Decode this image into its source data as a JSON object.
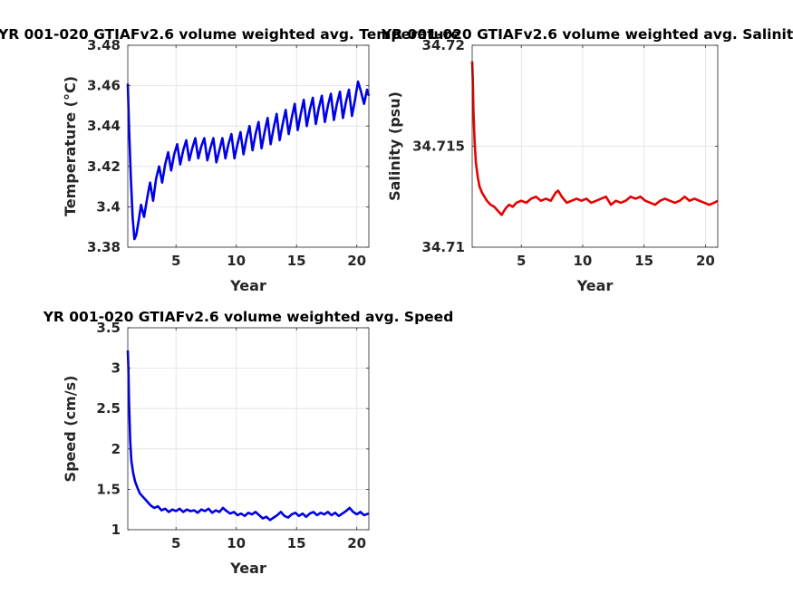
{
  "chart_data": [
    {
      "type": "line",
      "title": "YR 001-020 GTIAFv2.6 volume weighted avg. Temperature",
      "xlabel": "Year",
      "ylabel": "Temperature (°C)",
      "xlim": [
        1,
        21
      ],
      "ylim": [
        3.38,
        3.48
      ],
      "xticks": [
        5,
        10,
        15,
        20
      ],
      "yticks": [
        3.38,
        3.4,
        3.42,
        3.44,
        3.46,
        3.48
      ],
      "ytick_labels": [
        "3.38",
        "3.4",
        "3.42",
        "3.44",
        "3.46",
        "3.48"
      ],
      "grid": true,
      "color": "#0000e6",
      "x": [
        1.0,
        1.1,
        1.25,
        1.4,
        1.55,
        1.7,
        1.9,
        2.1,
        2.35,
        2.6,
        2.85,
        3.1,
        3.35,
        3.6,
        3.85,
        4.1,
        4.35,
        4.6,
        4.85,
        5.1,
        5.35,
        5.6,
        5.85,
        6.1,
        6.35,
        6.6,
        6.85,
        7.1,
        7.35,
        7.6,
        7.85,
        8.1,
        8.35,
        8.6,
        8.85,
        9.1,
        9.35,
        9.6,
        9.85,
        10.1,
        10.35,
        10.6,
        10.85,
        11.1,
        11.35,
        11.6,
        11.85,
        12.1,
        12.35,
        12.6,
        12.85,
        13.1,
        13.35,
        13.6,
        13.85,
        14.1,
        14.35,
        14.6,
        14.85,
        15.1,
        15.35,
        15.6,
        15.85,
        16.1,
        16.35,
        16.6,
        16.85,
        17.1,
        17.35,
        17.6,
        17.85,
        18.1,
        18.35,
        18.6,
        18.85,
        19.1,
        19.35,
        19.6,
        19.85,
        20.1,
        20.35,
        20.6,
        20.85,
        21.0
      ],
      "y": [
        3.461,
        3.44,
        3.415,
        3.395,
        3.384,
        3.386,
        3.393,
        3.401,
        3.395,
        3.404,
        3.412,
        3.403,
        3.414,
        3.42,
        3.412,
        3.421,
        3.427,
        3.418,
        3.426,
        3.431,
        3.421,
        3.428,
        3.433,
        3.423,
        3.429,
        3.434,
        3.424,
        3.43,
        3.434,
        3.423,
        3.429,
        3.434,
        3.422,
        3.428,
        3.434,
        3.424,
        3.431,
        3.436,
        3.424,
        3.431,
        3.437,
        3.426,
        3.434,
        3.44,
        3.428,
        3.436,
        3.442,
        3.429,
        3.437,
        3.444,
        3.431,
        3.439,
        3.446,
        3.433,
        3.441,
        3.448,
        3.436,
        3.444,
        3.451,
        3.438,
        3.446,
        3.453,
        3.44,
        3.448,
        3.454,
        3.441,
        3.449,
        3.455,
        3.442,
        3.45,
        3.456,
        3.443,
        3.451,
        3.457,
        3.444,
        3.452,
        3.458,
        3.445,
        3.453,
        3.462,
        3.457,
        3.451,
        3.458,
        3.455
      ]
    },
    {
      "type": "line",
      "title": "YR 001-020 GTIAFv2.6 volume weighted avg. Salinity",
      "xlabel": "Year",
      "ylabel": "Salinity (psu)",
      "xlim": [
        1,
        21
      ],
      "ylim": [
        34.71,
        34.72
      ],
      "xticks": [
        5,
        10,
        15,
        20
      ],
      "yticks": [
        34.71,
        34.715,
        34.72
      ],
      "ytick_labels": [
        "34.71",
        "34.715",
        "34.72"
      ],
      "grid": true,
      "color": "#e60000",
      "x": [
        1.0,
        1.05,
        1.1,
        1.2,
        1.3,
        1.45,
        1.6,
        1.8,
        2.0,
        2.2,
        2.5,
        2.8,
        3.1,
        3.4,
        3.7,
        4.0,
        4.3,
        4.6,
        5.0,
        5.4,
        5.8,
        6.2,
        6.6,
        7.0,
        7.4,
        7.8,
        8.0,
        8.3,
        8.7,
        9.1,
        9.5,
        9.9,
        10.3,
        10.7,
        11.1,
        11.5,
        11.9,
        12.3,
        12.7,
        13.1,
        13.5,
        13.9,
        14.3,
        14.7,
        15.1,
        15.5,
        15.9,
        16.3,
        16.7,
        17.1,
        17.5,
        17.9,
        18.3,
        18.7,
        19.1,
        19.5,
        19.9,
        20.3,
        20.7,
        21.0
      ],
      "y": [
        34.7192,
        34.7183,
        34.7168,
        34.7152,
        34.7142,
        34.7135,
        34.713,
        34.7127,
        34.7125,
        34.7123,
        34.7121,
        34.712,
        34.7118,
        34.7116,
        34.7119,
        34.7121,
        34.712,
        34.7122,
        34.7123,
        34.7122,
        34.7124,
        34.7125,
        34.7123,
        34.7124,
        34.7123,
        34.7127,
        34.7128,
        34.7125,
        34.7122,
        34.7123,
        34.7124,
        34.7123,
        34.7124,
        34.7122,
        34.7123,
        34.7124,
        34.7125,
        34.7121,
        34.7123,
        34.7122,
        34.7123,
        34.7125,
        34.7124,
        34.7125,
        34.7123,
        34.7122,
        34.7121,
        34.7123,
        34.7124,
        34.7123,
        34.7122,
        34.7123,
        34.7125,
        34.7123,
        34.7124,
        34.7123,
        34.7122,
        34.7121,
        34.7122,
        34.7123
      ]
    },
    {
      "type": "line",
      "title": "YR 001-020 GTIAFv2.6 volume weighted avg. Speed",
      "xlabel": "Year",
      "ylabel": "Speed (cm/s)",
      "xlim": [
        1,
        21
      ],
      "ylim": [
        1,
        3.5
      ],
      "xticks": [
        5,
        10,
        15,
        20
      ],
      "yticks": [
        1,
        1.5,
        2,
        2.5,
        3,
        3.5
      ],
      "ytick_labels": [
        "1",
        "1.5",
        "2",
        "2.5",
        "3",
        "3.5"
      ],
      "grid": true,
      "color": "#0000e6",
      "x": [
        1.0,
        1.05,
        1.1,
        1.2,
        1.3,
        1.45,
        1.6,
        1.8,
        2.0,
        2.3,
        2.6,
        2.9,
        3.2,
        3.5,
        3.8,
        4.1,
        4.4,
        4.7,
        5.0,
        5.3,
        5.6,
        5.9,
        6.2,
        6.5,
        6.8,
        7.1,
        7.4,
        7.7,
        8.0,
        8.3,
        8.6,
        8.9,
        9.2,
        9.5,
        9.8,
        10.1,
        10.4,
        10.7,
        11.0,
        11.3,
        11.6,
        11.9,
        12.2,
        12.5,
        12.8,
        13.1,
        13.4,
        13.7,
        14.0,
        14.3,
        14.6,
        14.9,
        15.2,
        15.5,
        15.8,
        16.1,
        16.4,
        16.7,
        17.0,
        17.3,
        17.6,
        17.9,
        18.2,
        18.5,
        18.8,
        19.1,
        19.4,
        19.7,
        20.0,
        20.3,
        20.6,
        21.0
      ],
      "y": [
        3.22,
        3.0,
        2.6,
        2.1,
        1.85,
        1.7,
        1.6,
        1.52,
        1.45,
        1.4,
        1.35,
        1.3,
        1.27,
        1.29,
        1.24,
        1.26,
        1.22,
        1.25,
        1.23,
        1.26,
        1.22,
        1.25,
        1.23,
        1.24,
        1.21,
        1.25,
        1.23,
        1.26,
        1.21,
        1.24,
        1.22,
        1.27,
        1.23,
        1.2,
        1.22,
        1.18,
        1.2,
        1.17,
        1.21,
        1.19,
        1.22,
        1.18,
        1.14,
        1.16,
        1.12,
        1.15,
        1.18,
        1.22,
        1.17,
        1.15,
        1.19,
        1.21,
        1.17,
        1.2,
        1.16,
        1.2,
        1.22,
        1.18,
        1.21,
        1.19,
        1.22,
        1.18,
        1.21,
        1.17,
        1.2,
        1.23,
        1.27,
        1.22,
        1.19,
        1.22,
        1.18,
        1.2
      ]
    }
  ]
}
